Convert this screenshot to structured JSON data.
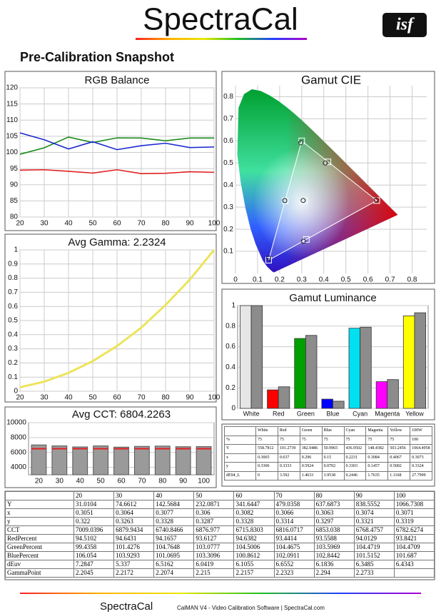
{
  "header": {
    "logo": "SpectraCal",
    "badge": "isf",
    "title": "Pre-Calibration Snapshot"
  },
  "chart_data": [
    {
      "type": "line",
      "title": "RGB Balance",
      "x": [
        20,
        30,
        40,
        50,
        60,
        70,
        80,
        90,
        100
      ],
      "xlim": [
        20,
        100
      ],
      "xticks": [
        20,
        30,
        40,
        50,
        60,
        70,
        80,
        90,
        100
      ],
      "ylim": [
        80,
        120
      ],
      "yticks": [
        80,
        85,
        90,
        95,
        100,
        105,
        110,
        115,
        120
      ],
      "grid": true,
      "series": [
        {
          "color": "#e02020",
          "values": [
            94.5102,
            94.6431,
            94.1657,
            93.6127,
            94.6382,
            93.4414,
            93.5588,
            94.0129,
            93.8421
          ]
        },
        {
          "color": "#1a8a1a",
          "values": [
            99.4358,
            101.4276,
            104.7648,
            103.0777,
            104.5006,
            104.4675,
            103.5969,
            104.4719,
            104.4709
          ]
        },
        {
          "color": "#1a2ad0",
          "values": [
            106.054,
            103.9293,
            101.0695,
            103.3096,
            100.8612,
            102.0911,
            102.8442,
            101.5152,
            101.687
          ]
        }
      ]
    },
    {
      "type": "line",
      "title": "Avg Gamma: 2.2324",
      "x": [
        20,
        30,
        40,
        50,
        60,
        70,
        80,
        90,
        100
      ],
      "xlim": [
        20,
        100
      ],
      "xticks": [
        20,
        30,
        40,
        50,
        60,
        70,
        80,
        90,
        100
      ],
      "ylim": [
        0,
        1
      ],
      "yticks": [
        0,
        0.1,
        0.2,
        0.3,
        0.4,
        0.5,
        0.6,
        0.7,
        0.8,
        0.9,
        1
      ],
      "grid": true,
      "series": [
        {
          "color": "#ece45a",
          "values": [
            0.028,
            0.068,
            0.13,
            0.213,
            0.32,
            0.45,
            0.61,
            0.79,
            1
          ]
        }
      ]
    },
    {
      "type": "bar",
      "title": "Avg CCT: 6804.2263",
      "categories": [
        "20",
        "30",
        "40",
        "50",
        "60",
        "70",
        "80",
        "90",
        "100"
      ],
      "values": [
        7009.0396,
        6879.9434,
        6740.8466,
        6876.977,
        6715.8303,
        6816.0717,
        6853.038,
        6768.4757,
        6782.6274
      ],
      "color": "#9a9a9a",
      "reference": 6500,
      "reference_color": "#e02020",
      "ylim": [
        3000,
        10000
      ],
      "yticks": [
        4000,
        6000,
        8000,
        10000
      ],
      "grid": true
    },
    {
      "type": "cie",
      "title": "Gamut CIE",
      "xlim": [
        0,
        0.85
      ],
      "xticks": [
        0,
        0.1,
        0.2,
        0.3,
        0.4,
        0.5,
        0.6,
        0.7,
        0.8
      ],
      "ylim": [
        0,
        0.85
      ],
      "yticks": [
        0.1,
        0.2,
        0.3,
        0.4,
        0.5,
        0.6,
        0.7,
        0.8
      ],
      "grid": true,
      "series": [
        {
          "marker": "square",
          "color": "#ffffff",
          "x": [
            0.64,
            0.3,
            0.15,
            0.225,
            0.321,
            0.419,
            0.3127
          ],
          "y": [
            0.33,
            0.6,
            0.06,
            0.329,
            0.154,
            0.505,
            0.329
          ]
        },
        {
          "marker": "circle",
          "color": "#222222",
          "x": [
            0.637,
            0.296,
            0.15,
            0.223,
            0.308,
            0.407,
            0.3065
          ],
          "y": [
            0.333,
            0.592,
            0.07,
            0.33,
            0.146,
            0.5,
            0.3306
          ]
        }
      ]
    },
    {
      "type": "grouped_bar",
      "title": "Gamut Luminance",
      "categories": [
        "White",
        "Red",
        "Green",
        "Blue",
        "Cyan",
        "Magenta",
        "Yellow"
      ],
      "ylim": [
        0,
        1
      ],
      "yticks": [
        0,
        0.2,
        0.4,
        0.6,
        0.8,
        1
      ],
      "grid": true,
      "series": [
        {
          "colors": [
            "#e6e6e6",
            "#ff0000",
            "#00a000",
            "#0000ff",
            "#00e0f0",
            "#ff00ff",
            "#ffff00"
          ],
          "values": [
            1,
            0.18,
            0.68,
            0.09,
            0.78,
            0.26,
            0.9
          ]
        },
        {
          "color": "#8c8c8c",
          "values": [
            1,
            0.21,
            0.71,
            0.07,
            0.79,
            0.28,
            0.93
          ]
        }
      ]
    }
  ],
  "summary_table": {
    "columns": [
      "White",
      "Red",
      "Green",
      "Blue",
      "Cyan",
      "Magenta",
      "Yellow",
      "100W"
    ],
    "rows": [
      {
        "label": "%",
        "cells": [
          75,
          75,
          75,
          75,
          75,
          75,
          75,
          100
        ]
      },
      {
        "label": "Y",
        "cells": [
          558.7812,
          101.2739,
          382.9486,
          50.9965,
          436.9502,
          148.4382,
          503.2456,
          1064.4958
        ]
      },
      {
        "label": "x",
        "cells": [
          0.3065,
          0.637,
          0.296,
          0.15,
          0.2231,
          0.3084,
          0.4067,
          0.3073
        ]
      },
      {
        "label": "y",
        "cells": [
          0.3306,
          0.3333,
          0.5924,
          0.0702,
          0.3303,
          0.1457,
          0.5002,
          0.3324
        ]
      },
      {
        "label": "dE94_L",
        "cells": [
          0,
          3.592,
          1.4633,
          3.9538,
          0.2446,
          1.7635,
          1.1168,
          27.7999
        ]
      }
    ]
  },
  "data_table": {
    "columns": [
      20,
      30,
      40,
      50,
      60,
      70,
      80,
      90,
      100
    ],
    "rows": [
      {
        "label": "Y",
        "cells": [
          31.0104,
          74.6612,
          142.5684,
          232.0871,
          341.6447,
          479.0358,
          637.6873,
          838.5552,
          1066.7308
        ]
      },
      {
        "label": "x",
        "cells": [
          0.3051,
          0.3064,
          0.3077,
          0.306,
          0.3082,
          0.3066,
          0.3063,
          0.3074,
          0.3071
        ]
      },
      {
        "label": "y",
        "cells": [
          0.322,
          0.3263,
          0.3328,
          0.3287,
          0.3328,
          0.3314,
          0.3297,
          0.3321,
          0.3319
        ]
      },
      {
        "label": "CCT",
        "cells": [
          7009.0396,
          6879.9434,
          6740.8466,
          6876.977,
          6715.8303,
          6816.0717,
          6853.038,
          6768.4757,
          6782.6274
        ]
      },
      {
        "label": "RedPercent",
        "cells": [
          94.5102,
          94.6431,
          94.1657,
          93.6127,
          94.6382,
          93.4414,
          93.5588,
          94.0129,
          93.8421
        ]
      },
      {
        "label": "GreenPercent",
        "cells": [
          99.4358,
          101.4276,
          104.7648,
          103.0777,
          104.5006,
          104.4675,
          103.5969,
          104.4719,
          104.4709
        ]
      },
      {
        "label": "BluePercent",
        "cells": [
          106.054,
          103.9293,
          101.0695,
          103.3096,
          100.8612,
          102.0911,
          102.8442,
          101.5152,
          101.687
        ]
      },
      {
        "label": "dEuv",
        "cells": [
          7.2847,
          5.337,
          6.5162,
          6.0419,
          6.1055,
          6.6552,
          6.1836,
          6.3485,
          6.4343
        ]
      },
      {
        "label": "GammaPoint",
        "cells": [
          2.2045,
          2.2172,
          2.2074,
          2.215,
          2.2157,
          2.2323,
          2.294,
          2.2733,
          null
        ]
      }
    ]
  },
  "footer": {
    "logo": "SpectraCal",
    "text": "CalMAN V4 - Video Calibration Software | SpectraCal.com"
  }
}
